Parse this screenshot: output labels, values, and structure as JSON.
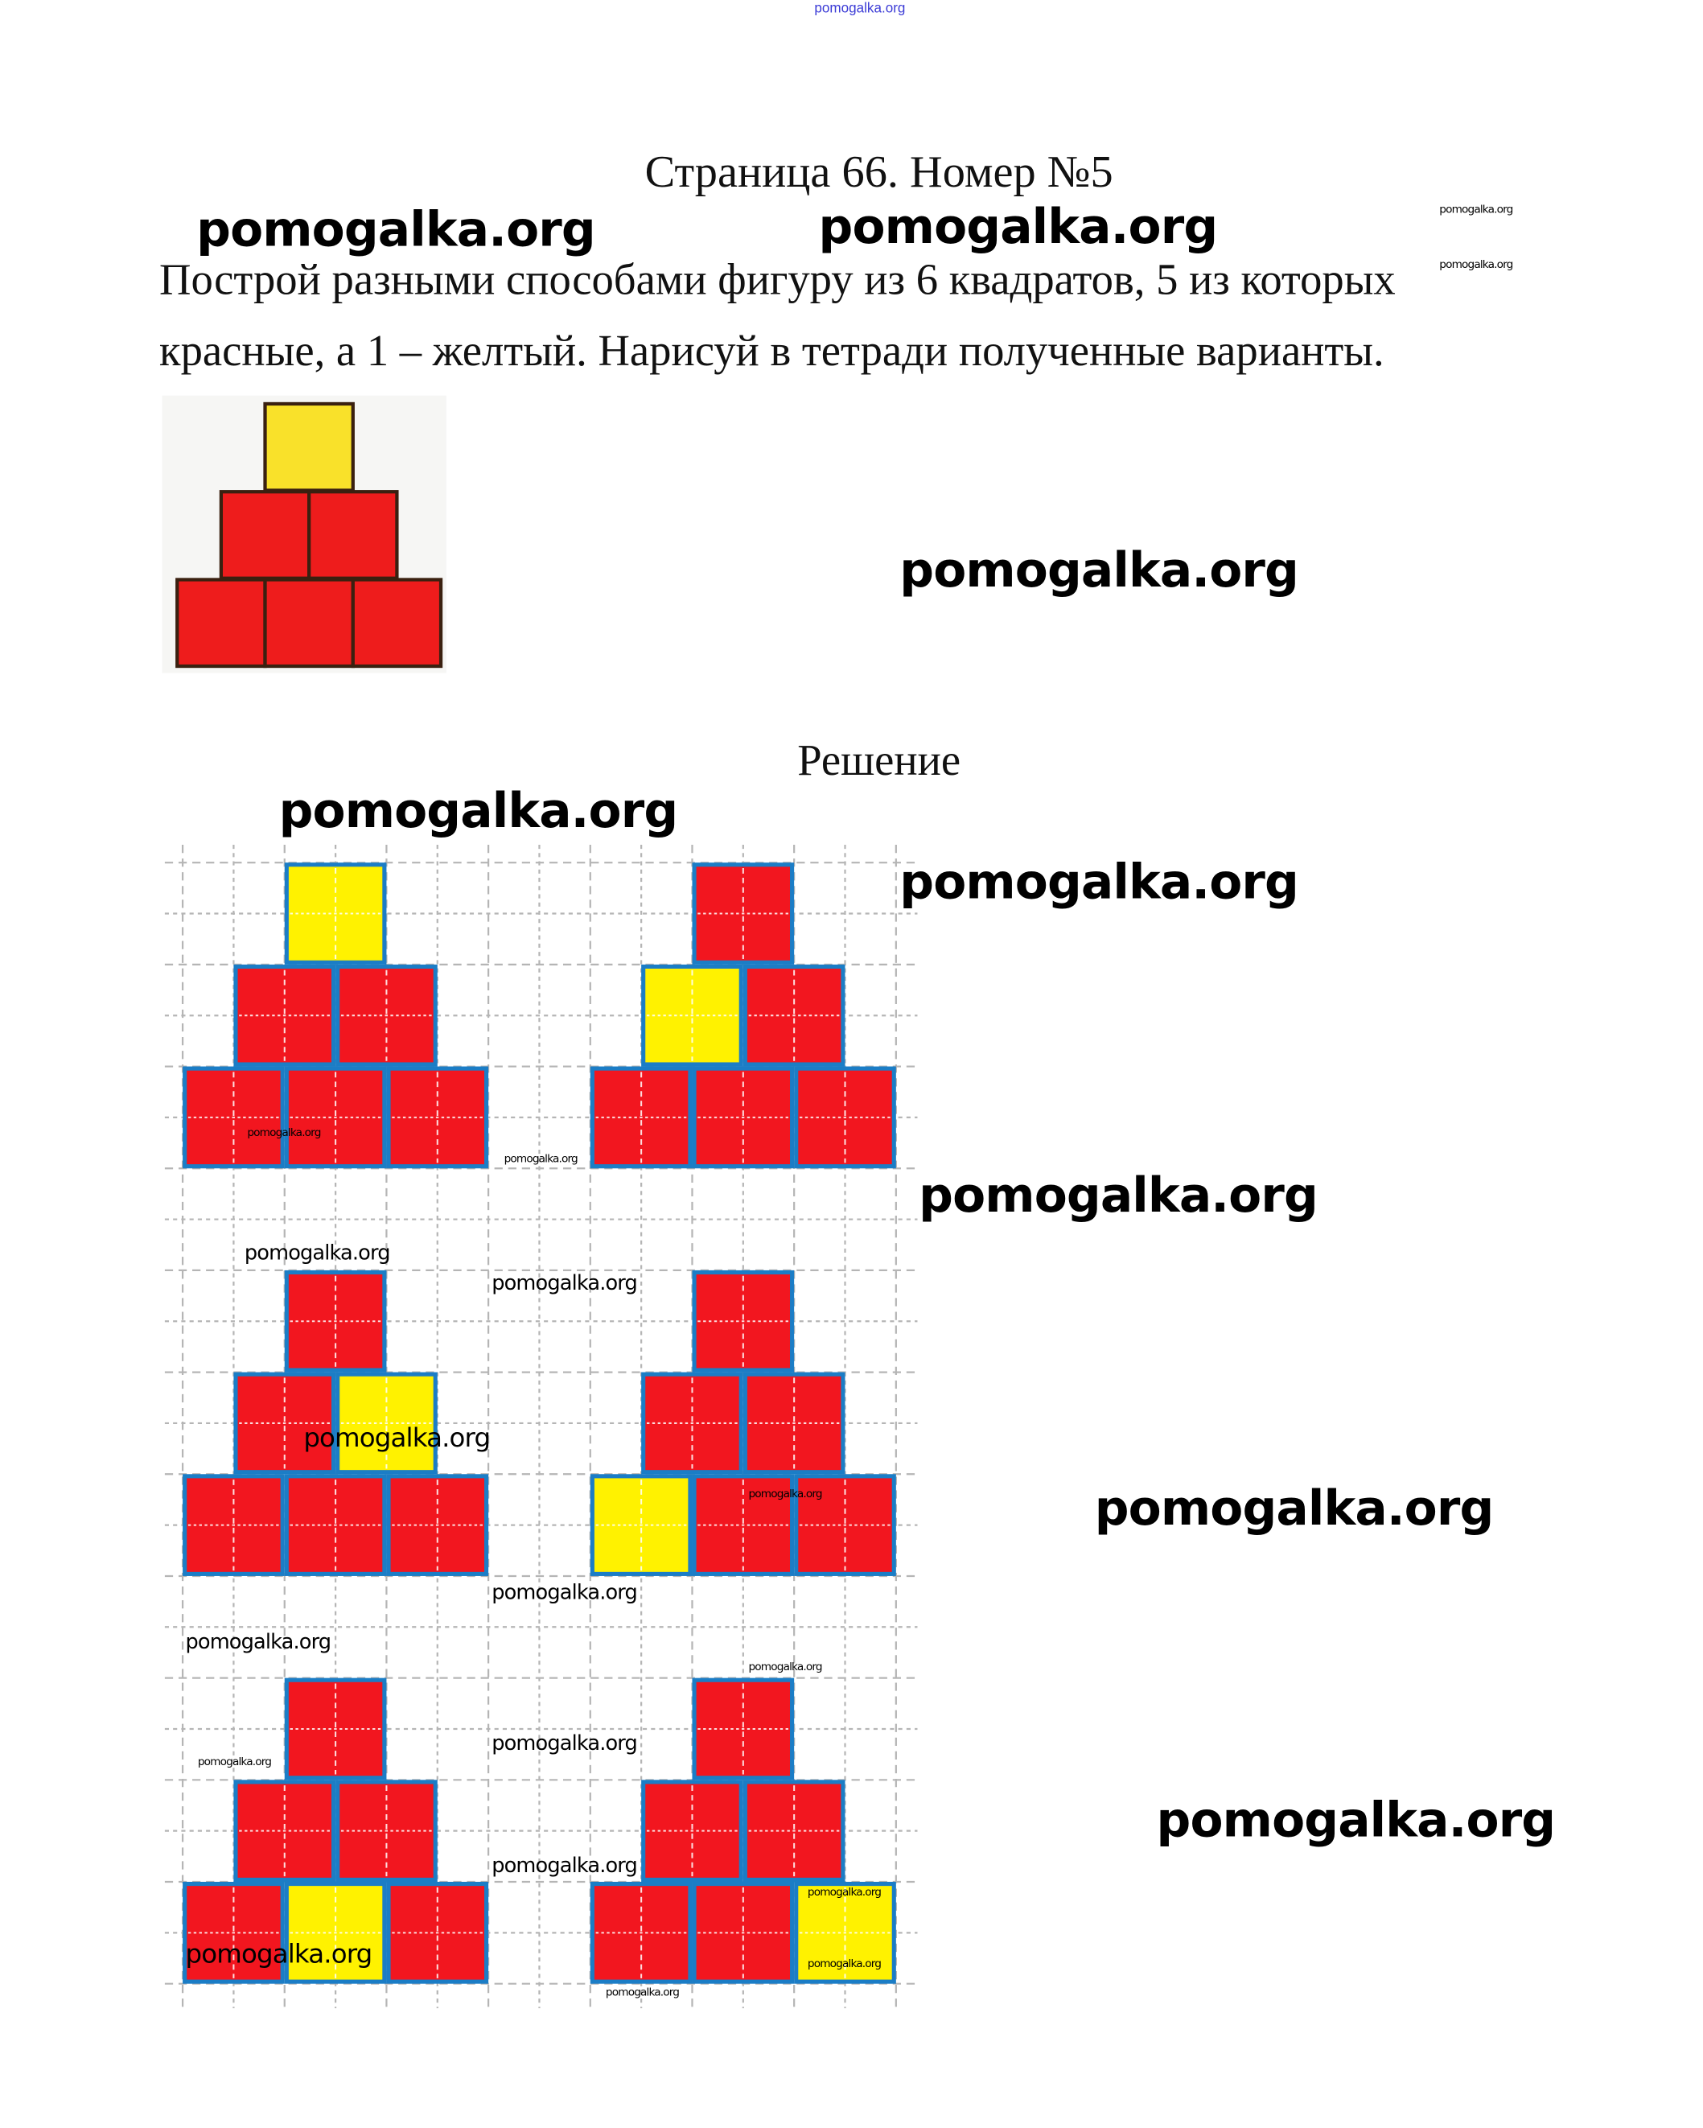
{
  "header": {
    "top_link": "pomogalka.org"
  },
  "title": "Страница 66. Номер №5",
  "task": {
    "line1": "Построй разными способами фигуру из 6 квадратов, 5 из которых",
    "line2": "красные, а 1 – желтый. Нарисуй в тетради полученные варианты."
  },
  "example_figure": {
    "yellow_position": "top"
  },
  "solution_heading": "Решение",
  "solution_variants": [
    {
      "yellow_position": "top"
    },
    {
      "yellow_position": "middle-left"
    },
    {
      "yellow_position": "middle-right"
    },
    {
      "yellow_position": "bottom-left"
    },
    {
      "yellow_position": "bottom-middle"
    },
    {
      "yellow_position": "bottom-right"
    }
  ],
  "colors": {
    "red": "#f2161f",
    "yellow": "#fff200",
    "border": "#1b7dc6",
    "grid": "#b5b5b5",
    "link": "#3b3bd6"
  },
  "watermarks": [
    "pomogalka.org",
    "pomogalka.org",
    "pomogalka.org",
    "pomogalka.org",
    "pomogalka.org",
    "pomogalka.org",
    "pomogalka.org",
    "pomogalka.org",
    "pomogalka.org",
    "pomogalka.org",
    "pomogalka.org",
    "pomogalka.org",
    "pomogalka.org",
    "pomogalka.org",
    "pomogalka.org",
    "pomogalka.org",
    "pomogalka.org",
    "pomogalka.org",
    "pomogalka.org",
    "pomogalka.org",
    "pomogalka.org",
    "pomogalka.org",
    "pomogalka.org",
    "pomogalka.org",
    "pomogalka.org",
    "pomogalka.org"
  ]
}
